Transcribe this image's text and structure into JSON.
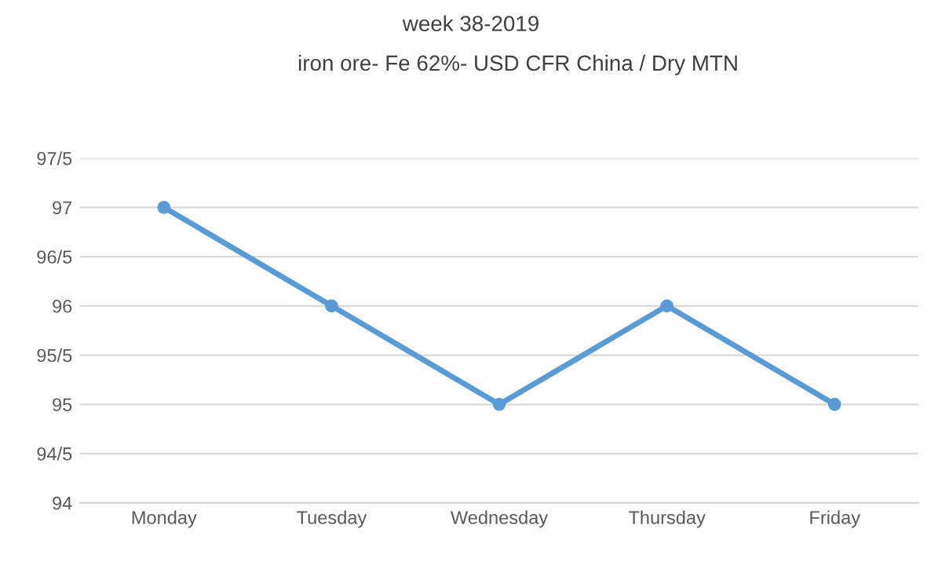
{
  "chart_data": {
    "type": "line",
    "title": "week 38-2019",
    "subtitle": "iron ore- Fe 62%- USD CFR China / Dry MTN",
    "categories": [
      "Monday",
      "Tuesday",
      "Wednesday",
      "Thursday",
      "Friday"
    ],
    "series": [
      {
        "color": "#5b9bd5",
        "values": [
          97,
          96,
          95,
          96,
          95
        ]
      }
    ],
    "ylim": [
      94,
      97.5
    ],
    "yticks": [
      94,
      {
        "value": 94.5,
        "label": "94/5"
      },
      95,
      {
        "value": 95.5,
        "label": "95/5"
      },
      96,
      {
        "value": 96.5,
        "label": "96/5"
      },
      97,
      {
        "value": 97.5,
        "label": "97/5"
      }
    ],
    "grid": "y",
    "marker": "circle",
    "line_style": "solid"
  }
}
